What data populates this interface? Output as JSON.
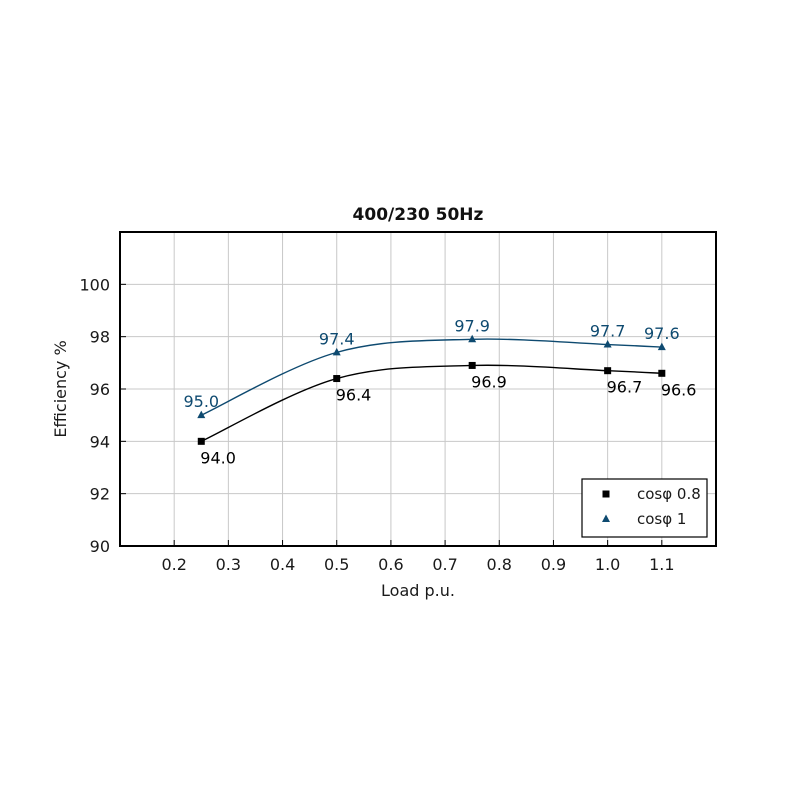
{
  "chart_data": {
    "type": "line",
    "title": "400/230 50Hz",
    "xlabel": "Load p.u.",
    "ylabel": "Efficiency %",
    "xlim": [
      0.1,
      1.2
    ],
    "ylim": [
      90,
      102
    ],
    "x_ticks": [
      "0.2",
      "0.3",
      "0.4",
      "0.5",
      "0.6",
      "0.7",
      "0.8",
      "0.9",
      "1.0",
      "1.1"
    ],
    "y_ticks": [
      "90",
      "92",
      "94",
      "96",
      "98",
      "100"
    ],
    "grid": true,
    "legend_position": "bottom-right",
    "series": [
      {
        "name": "cosφ 0.8",
        "color": "#000000",
        "marker": "square",
        "label_position": "below",
        "x": [
          0.25,
          0.5,
          0.75,
          1.0,
          1.1
        ],
        "y": [
          94.0,
          96.4,
          96.9,
          96.7,
          96.6
        ],
        "labels": [
          "94.0",
          "96.4",
          "96.9",
          "96.7",
          "96.6"
        ]
      },
      {
        "name": "cosφ 1",
        "color": "#0e4a70",
        "marker": "triangle",
        "label_position": "above",
        "x": [
          0.25,
          0.5,
          0.75,
          1.0,
          1.1
        ],
        "y": [
          95.0,
          97.4,
          97.9,
          97.7,
          97.6
        ],
        "labels": [
          "95.0",
          "97.4",
          "97.9",
          "97.7",
          "97.6"
        ]
      }
    ]
  }
}
